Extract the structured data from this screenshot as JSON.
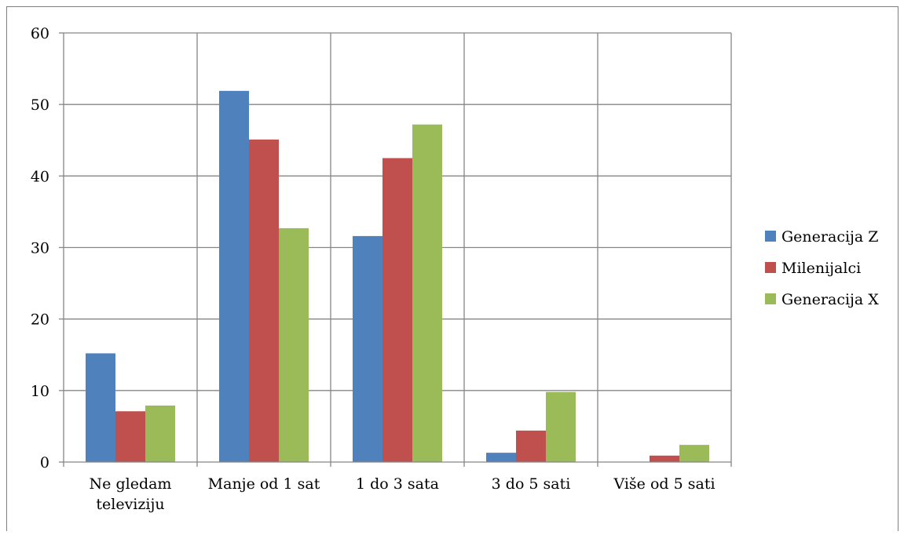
{
  "chart_data": {
    "type": "bar",
    "title": "",
    "xlabel": "",
    "ylabel": "",
    "categories": [
      [
        "Ne gledam",
        "televiziju"
      ],
      [
        "Manje od 1 sat"
      ],
      [
        "1 do 3 sata"
      ],
      [
        "3 do 5 sati"
      ],
      [
        "Više od 5 sati"
      ]
    ],
    "series": [
      {
        "name": "Generacija Z",
        "color": "#4f81bd",
        "values": [
          15.2,
          51.9,
          31.6,
          1.3,
          0
        ]
      },
      {
        "name": "Milenijalci",
        "color": "#c0504d",
        "values": [
          7.1,
          45.1,
          42.5,
          4.4,
          0.9
        ]
      },
      {
        "name": "Generacija X",
        "color": "#9bbb59",
        "values": [
          7.9,
          32.7,
          47.2,
          9.8,
          2.4
        ]
      }
    ],
    "ylim": [
      0,
      60
    ],
    "yticks": [
      0,
      10,
      20,
      30,
      40,
      50,
      60
    ],
    "grid": true,
    "legend_position": "right"
  }
}
